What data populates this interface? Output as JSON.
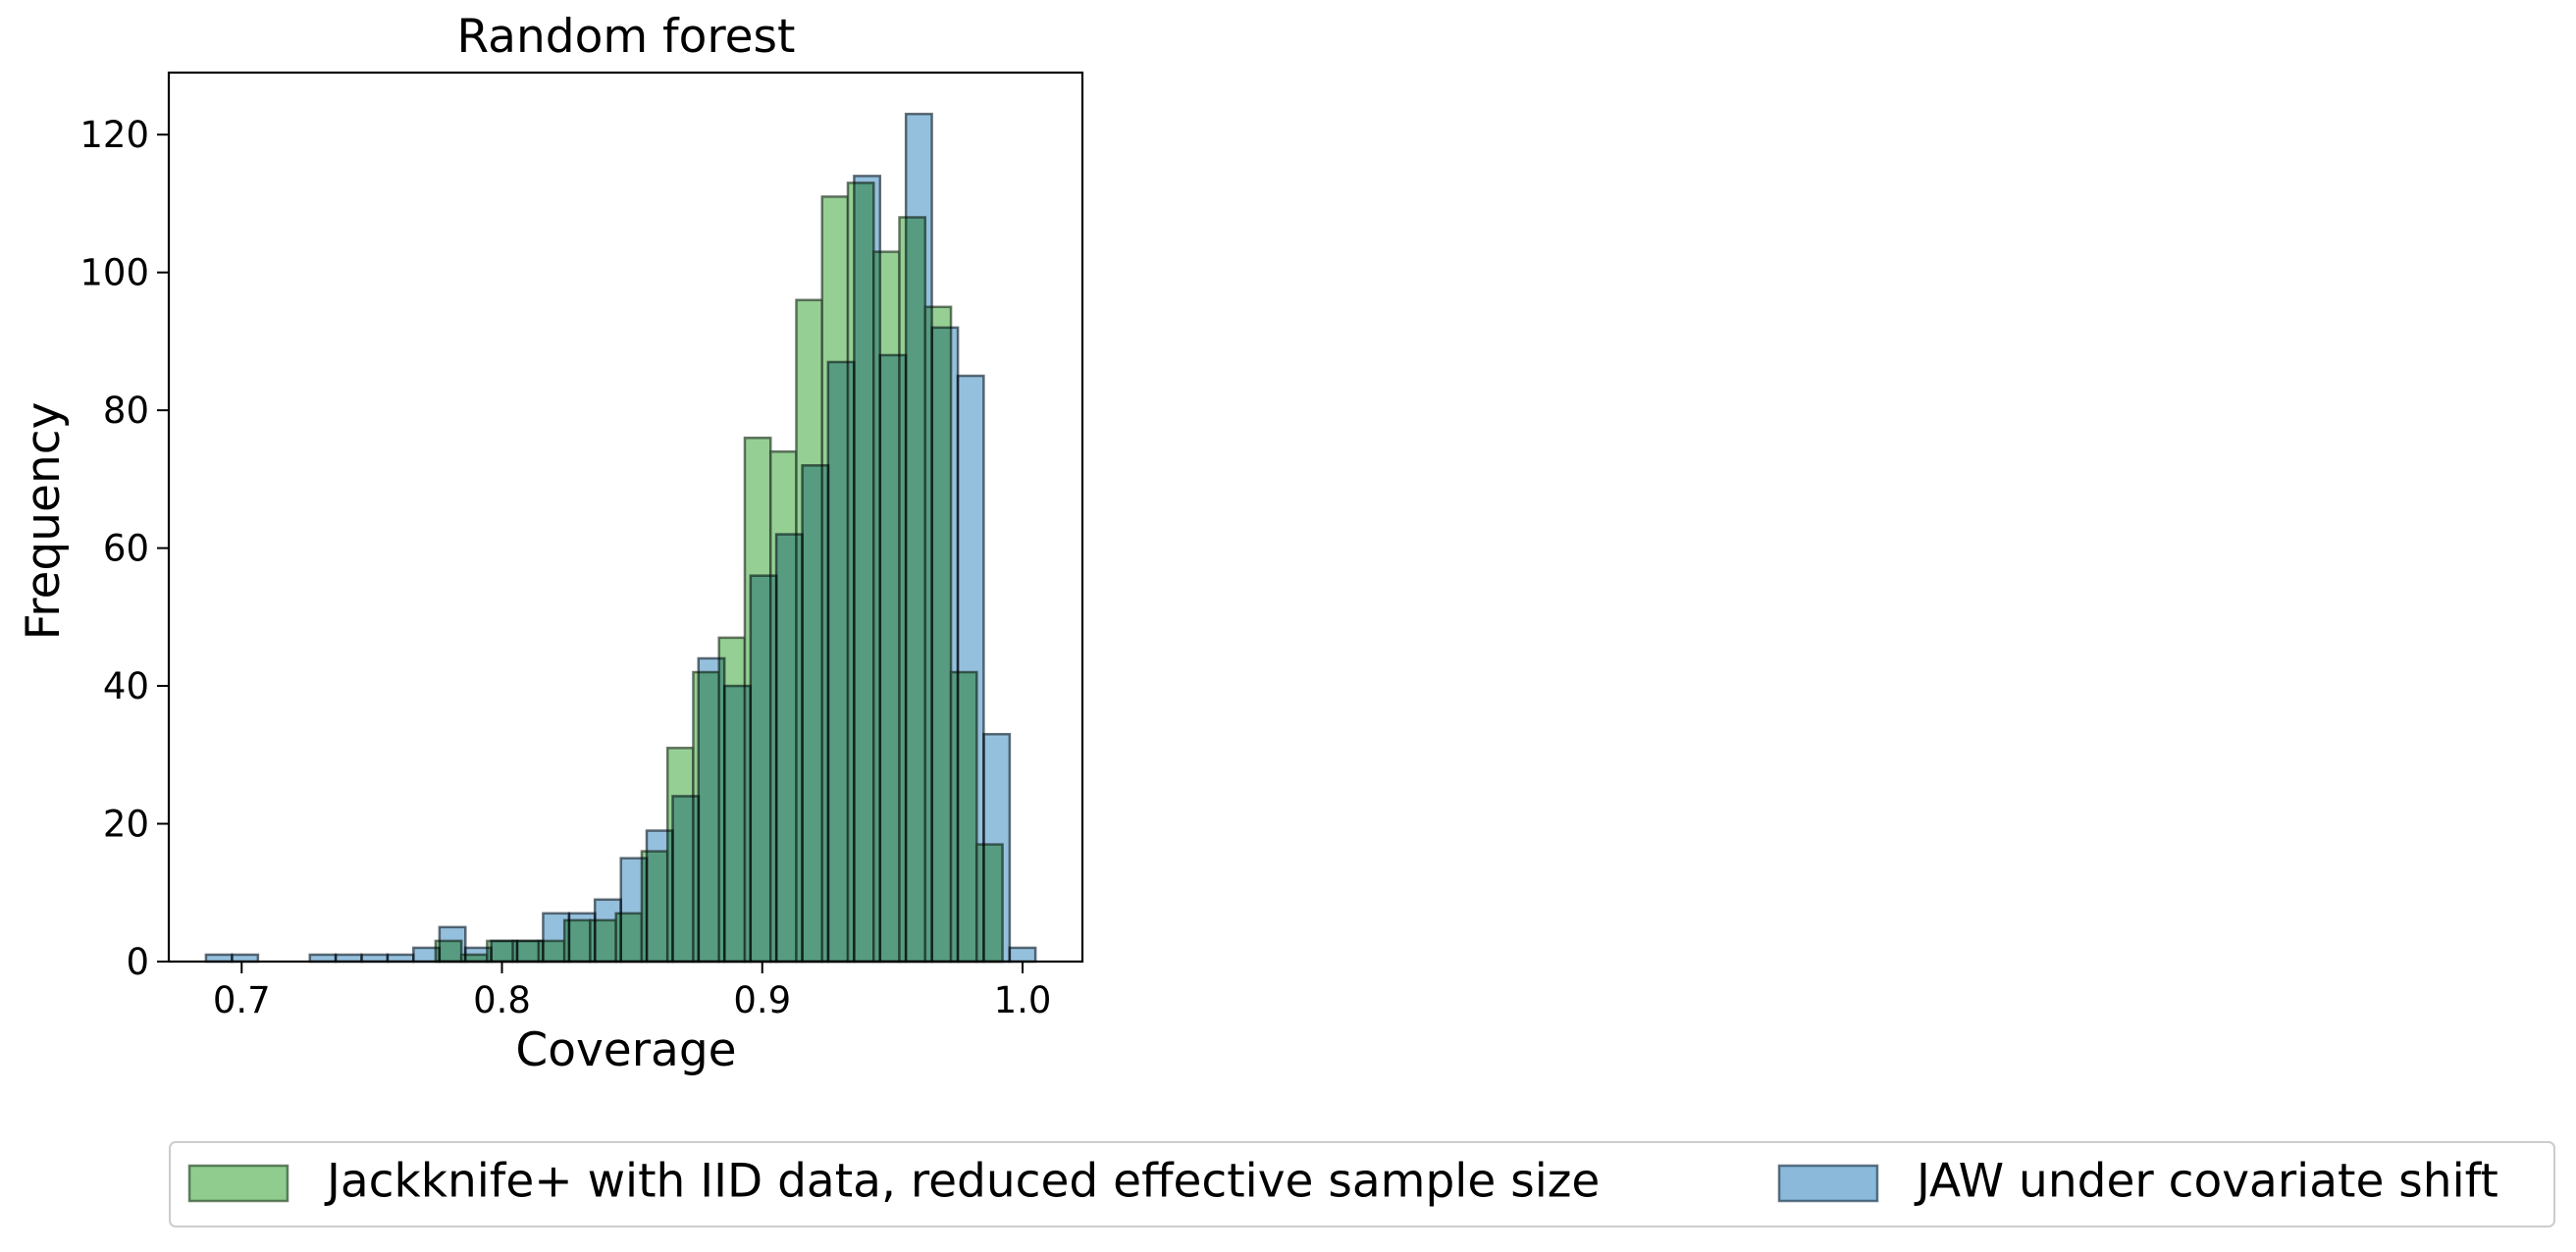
{
  "chart_data": {
    "type": "bar",
    "title": "Random forest",
    "xlabel": "Coverage",
    "ylabel": "Frequency",
    "xlim": [
      0.672,
      1.023
    ],
    "ylim": [
      0,
      129
    ],
    "xticks": [
      0.7,
      0.8,
      0.9,
      1.0
    ],
    "xtick_labels": [
      "0.7",
      "0.8",
      "0.9",
      "1.0"
    ],
    "yticks": [
      0,
      20,
      40,
      60,
      80,
      100,
      120
    ],
    "ytick_labels": [
      "0",
      "20",
      "40",
      "60",
      "80",
      "100",
      "120"
    ],
    "grid": false,
    "legend_position": "bottom, below plot, horizontal",
    "series": [
      {
        "name": "Jackknife+ with IID data, reduced effective sample size",
        "color": "#8fcc8e",
        "bin_width": 0.0099,
        "bin_starts": [
          0.7745,
          0.7844,
          0.7943,
          0.8042,
          0.8141,
          0.824,
          0.8339,
          0.8438,
          0.8537,
          0.8636,
          0.8735,
          0.8834,
          0.8933,
          0.9032,
          0.9131,
          0.923,
          0.9329,
          0.9428,
          0.9527,
          0.9626,
          0.9725,
          0.9824
        ],
        "values": [
          3,
          1,
          3,
          3,
          3,
          6,
          6,
          7,
          16,
          31,
          42,
          47,
          76,
          74,
          96,
          111,
          113,
          103,
          108,
          95,
          42,
          17
        ]
      },
      {
        "name": "JAW under covariate shift",
        "color": "#8ab9d9",
        "bin_width": 0.00996,
        "bin_starts": [
          0.6863,
          0.6963,
          0.7063,
          0.7162,
          0.7262,
          0.7361,
          0.7461,
          0.756,
          0.766,
          0.776,
          0.7859,
          0.7959,
          0.8058,
          0.8158,
          0.8258,
          0.8357,
          0.8457,
          0.8556,
          0.8656,
          0.8755,
          0.8855,
          0.8955,
          0.9054,
          0.9154,
          0.9253,
          0.9353,
          0.9452,
          0.9552,
          0.9652,
          0.9751,
          0.9851,
          0.995
        ],
        "values": [
          1,
          1,
          0,
          0,
          1,
          1,
          1,
          1,
          2,
          5,
          2,
          3,
          3,
          7,
          7,
          9,
          15,
          19,
          24,
          44,
          40,
          56,
          62,
          72,
          87,
          114,
          88,
          123,
          92,
          85,
          33,
          2
        ]
      }
    ]
  }
}
